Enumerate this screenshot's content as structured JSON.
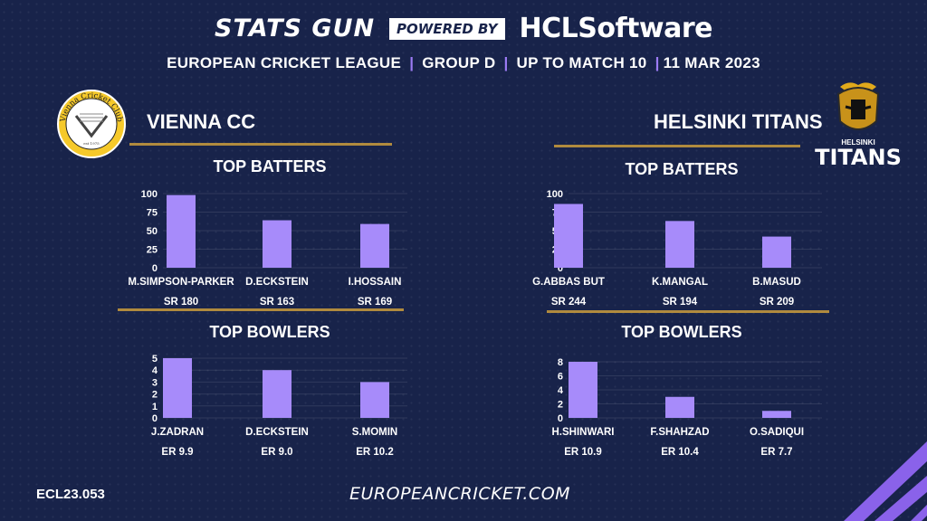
{
  "header": {
    "brand": "STATS GUN",
    "powered_by": "POWERED BY",
    "sponsor": "HCLSoftware",
    "league": "EUROPEAN CRICKET LEAGUE",
    "group": "GROUP  D",
    "match": "UP TO MATCH  10",
    "date": "11 MAR 2023",
    "separator": "|"
  },
  "teams": [
    {
      "name": "VIENNA CC",
      "logo_text": "Vienna Cricket Club",
      "logo_year": "est 1975"
    },
    {
      "name": "HELSINKI TITANS",
      "logo_small": "HELSINKI",
      "logo_big": "TITANS"
    }
  ],
  "section_titles": {
    "batters": "TOP BATTERS",
    "bowlers": "TOP BOWLERS"
  },
  "footer": {
    "code": "ECL23.053",
    "site": "EUROPEANCRICKET.COM"
  },
  "colors": {
    "bar": "#a78bfa",
    "accent_line": "#b08a3e",
    "background": "#18234a"
  },
  "chart_data": [
    {
      "type": "bar",
      "title": "TOP BATTERS",
      "team": "VIENNA CC",
      "categories": [
        "M.SIMPSON-PARKER",
        "D.ECKSTEIN",
        "I.HOSSAIN"
      ],
      "values": [
        98,
        64,
        59
      ],
      "sub_labels": [
        "SR 180",
        "SR 163",
        "SR 169"
      ],
      "ylim": [
        0,
        100
      ],
      "yticks": [
        0,
        25,
        50,
        75,
        100
      ]
    },
    {
      "type": "bar",
      "title": "TOP BOWLERS",
      "team": "VIENNA CC",
      "categories": [
        "J.ZADRAN",
        "D.ECKSTEIN",
        "S.MOMIN"
      ],
      "values": [
        5,
        4,
        3
      ],
      "sub_labels": [
        "ER  9.9",
        "ER 9.0",
        "ER 10.2"
      ],
      "ylim": [
        0,
        5
      ],
      "yticks": [
        0,
        1,
        2,
        3,
        4,
        5
      ]
    },
    {
      "type": "bar",
      "title": "TOP BATTERS",
      "team": "HELSINKI TITANS",
      "categories": [
        "G.ABBAS BUT",
        "K.MANGAL",
        "B.MASUD"
      ],
      "values": [
        86,
        63,
        42
      ],
      "sub_labels": [
        "SR 244",
        "SR 194",
        "SR 209"
      ],
      "ylim": [
        0,
        100
      ],
      "yticks": [
        0,
        25,
        50,
        75,
        100
      ]
    },
    {
      "type": "bar",
      "title": "TOP BOWLERS",
      "team": "HELSINKI TITANS",
      "categories": [
        "H.SHINWARI",
        "F.SHAHZAD",
        "O.SADIQUI"
      ],
      "values": [
        8,
        3,
        1
      ],
      "sub_labels": [
        "ER 10.9",
        "ER 10.4",
        "ER 7.7"
      ],
      "ylim": [
        0,
        8
      ],
      "yticks": [
        0,
        2,
        4,
        6,
        8
      ]
    }
  ]
}
